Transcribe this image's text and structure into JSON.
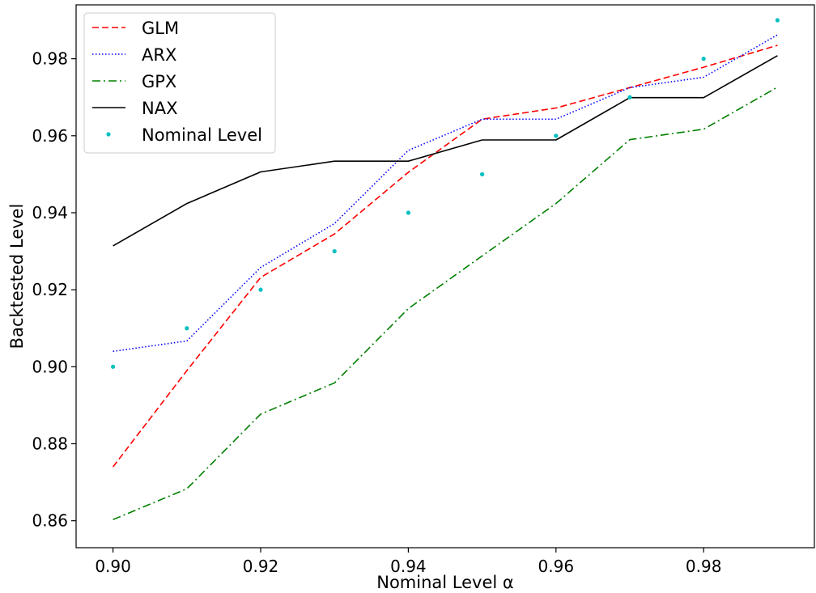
{
  "chart_data": {
    "type": "line",
    "title": "",
    "xlabel": "Nominal Level α",
    "ylabel": "Backtested Level",
    "xlim": [
      0.895,
      0.995
    ],
    "ylim": [
      0.853,
      0.994
    ],
    "xticks": [
      0.9,
      0.92,
      0.94,
      0.96,
      0.98
    ],
    "xtick_labels": [
      "0.90",
      "0.92",
      "0.94",
      "0.96",
      "0.98"
    ],
    "yticks": [
      0.86,
      0.88,
      0.9,
      0.92,
      0.94,
      0.96,
      0.98
    ],
    "ytick_labels": [
      "0.86",
      "0.88",
      "0.90",
      "0.92",
      "0.94",
      "0.96",
      "0.98"
    ],
    "grid": false,
    "legend_position": "top-left",
    "x": [
      0.9,
      0.91,
      0.92,
      0.93,
      0.94,
      0.95,
      0.96,
      0.97,
      0.98,
      0.99
    ],
    "series": [
      {
        "name": "GLM",
        "style": "dashed",
        "color": "#ff0000",
        "values": [
          0.874,
          0.899,
          0.9232,
          0.9345,
          0.9505,
          0.9643,
          0.9672,
          0.9725,
          0.9778,
          0.9835
        ]
      },
      {
        "name": "ARX",
        "style": "dotted",
        "color": "#0000ff",
        "values": [
          0.904,
          0.9067,
          0.9258,
          0.9372,
          0.9562,
          0.9643,
          0.9643,
          0.9725,
          0.9752,
          0.9862
        ]
      },
      {
        "name": "GPX",
        "style": "dashdot",
        "color": "#008000",
        "values": [
          0.8603,
          0.8683,
          0.8877,
          0.8958,
          0.9151,
          0.9288,
          0.9424,
          0.959,
          0.9617,
          0.9726
        ]
      },
      {
        "name": "NAX",
        "style": "solid",
        "color": "#000000",
        "values": [
          0.9314,
          0.9424,
          0.9506,
          0.9534,
          0.9534,
          0.9589,
          0.9589,
          0.9699,
          0.9699,
          0.9808
        ]
      },
      {
        "name": "Nominal Level",
        "style": "points",
        "color": "#00bfbf",
        "values": [
          0.9,
          0.91,
          0.92,
          0.93,
          0.94,
          0.95,
          0.96,
          0.97,
          0.98,
          0.99
        ]
      }
    ]
  }
}
